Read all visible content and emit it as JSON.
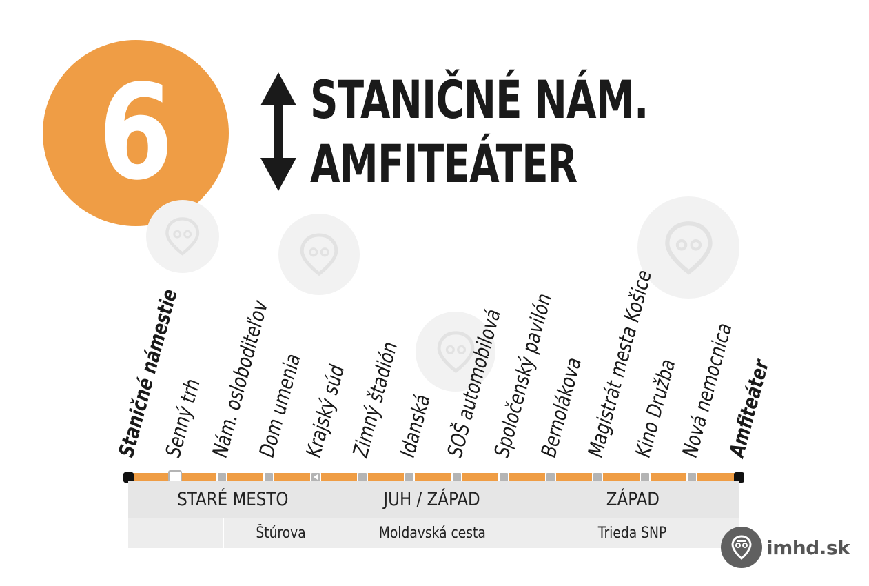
{
  "line": {
    "number": "6",
    "badge_color": "#ef9d45",
    "direction_icon": "bidirectional-arrow-icon"
  },
  "terminals": {
    "from": "STANIČNÉ NÁM.",
    "to": "AMFITEÁTER"
  },
  "route_color": "#ef9d45",
  "stops": [
    {
      "name": "Staničné námestie",
      "type": "terminal",
      "bold": true
    },
    {
      "name": "Senný trh",
      "type": "hollow",
      "bold": false
    },
    {
      "name": "Nám. osloboditeľov",
      "type": "regular",
      "bold": false
    },
    {
      "name": "Dom umenia",
      "type": "regular",
      "bold": false
    },
    {
      "name": "Krajský súd",
      "type": "request",
      "bold": false
    },
    {
      "name": "Zimný štadión",
      "type": "regular",
      "bold": false
    },
    {
      "name": "Idanská",
      "type": "regular",
      "bold": false
    },
    {
      "name": "SOŠ automobilová",
      "type": "regular",
      "bold": false
    },
    {
      "name": "Spoločenský pavilón",
      "type": "regular",
      "bold": false
    },
    {
      "name": "Bernolákova",
      "type": "regular",
      "bold": false
    },
    {
      "name": "Magistrát mesta Košice",
      "type": "regular",
      "bold": false
    },
    {
      "name": "Kino Družba",
      "type": "regular",
      "bold": false
    },
    {
      "name": "Nová nemocnica",
      "type": "regular",
      "bold": false
    },
    {
      "name": "Amfiteáter",
      "type": "terminal",
      "bold": true
    }
  ],
  "districts": [
    "STARÉ MESTO",
    "JUH / ZÁPAD",
    "ZÁPAD"
  ],
  "streets": [
    "",
    "Štúrova",
    "Moldavská cesta",
    "Trieda SNP"
  ],
  "brand": {
    "name": "imhd.sk",
    "icon": "imhd-logo-icon"
  }
}
